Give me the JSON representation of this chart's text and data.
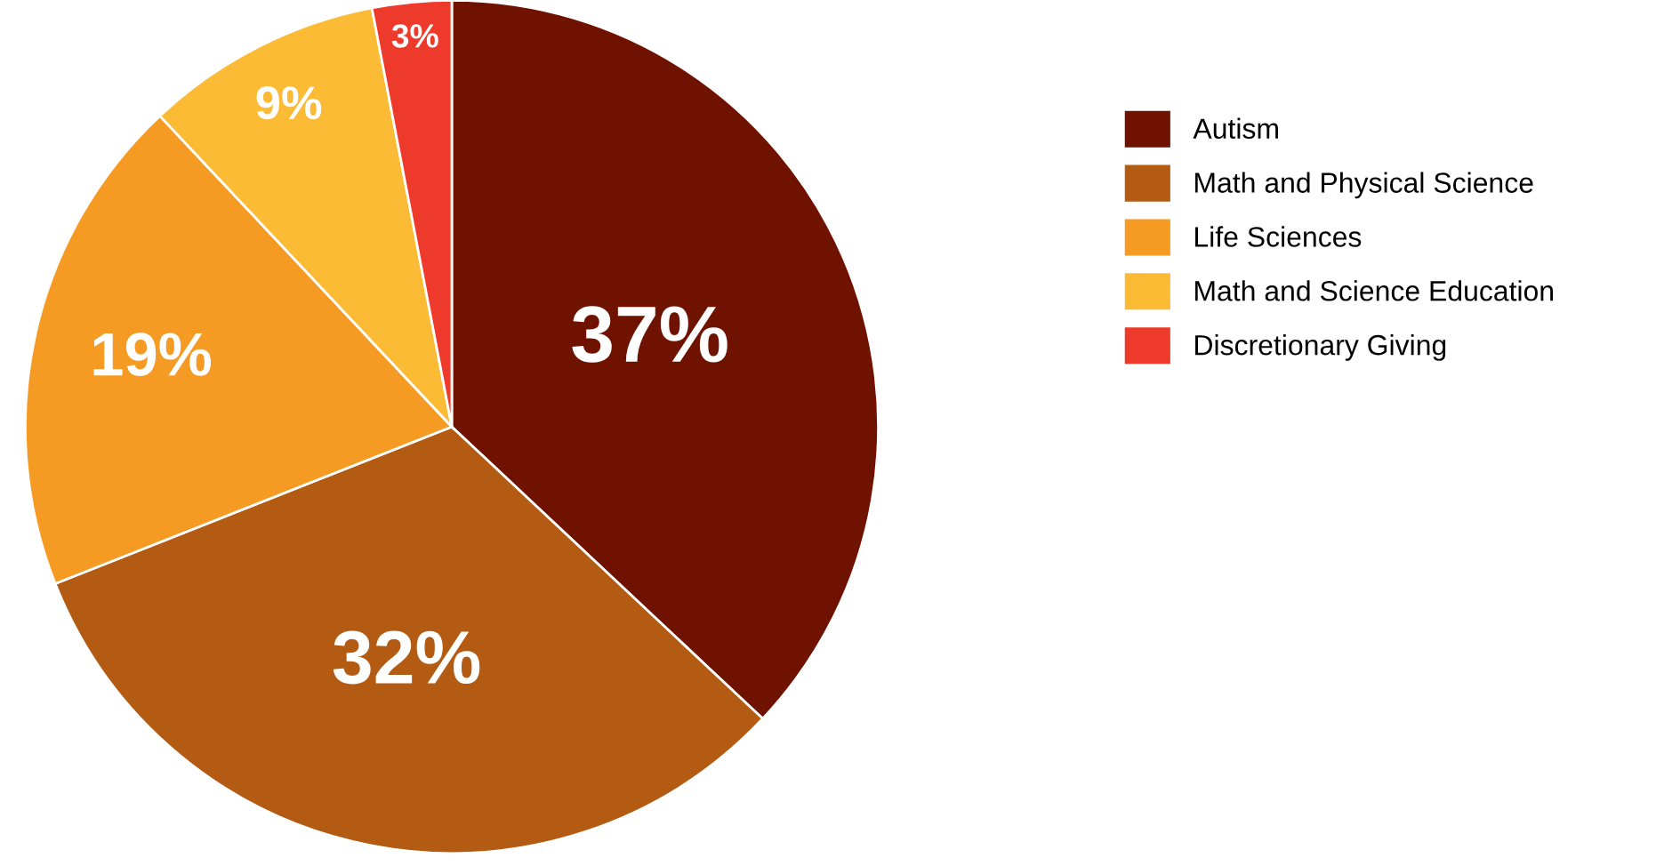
{
  "chart_data": {
    "type": "pie",
    "categories": [
      "Autism",
      "Math and Physical Science",
      "Life Sciences",
      "Math and Science Education",
      "Discretionary Giving"
    ],
    "values": [
      37,
      32,
      19,
      9,
      3
    ],
    "colors": [
      "#6f1200",
      "#b35a13",
      "#f59a23",
      "#fbbb35",
      "#ee3a2a"
    ],
    "value_labels": [
      "37%",
      "32%",
      "19%",
      "9%",
      "3%"
    ],
    "legend": "right"
  }
}
